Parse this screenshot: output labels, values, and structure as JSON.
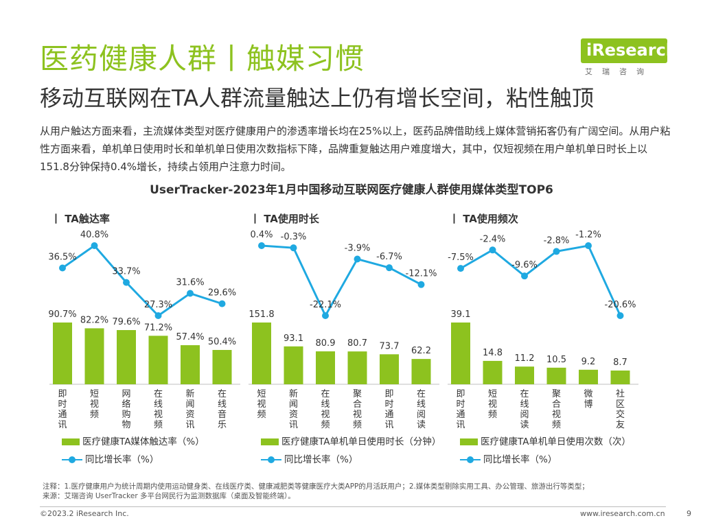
{
  "header": {
    "title": "医药健康人群丨触媒习惯",
    "subtitle": "移动互联网在TA人群流量触达上仍有增长空间，粘性触顶",
    "logo_text": "iResearch",
    "logo_sub": "艾瑞咨询"
  },
  "description": "从用户触达方面来看，主流媒体类型对医疗健康用户的渗透率增长均在25%以上，医药品牌借助线上媒体营销拓客仍有广阔空间。从用户粘性方面来看，单机单日使用时长和单机单日使用次数指标下降，品牌重复触达用户难度增大，其中，仅短视频在用户单机单日时长上以151.8分钟保持0.4%增长，持续占领用户注意力时间。",
  "chart_title": "UserTracker-2023年1月中国移动互联网医疗健康人群使用媒体类型TOP6",
  "colors": {
    "bar": "#8dc21f",
    "line": "#1fa9e1",
    "accent": "#8dc21f"
  },
  "chart_data": [
    {
      "type": "bar",
      "panel_title": "丨 TA触达率",
      "categories": [
        "即时通讯",
        "短视频",
        "网络购物",
        "在线视频",
        "新闻资讯",
        "在线音乐"
      ],
      "values": [
        90.7,
        82.2,
        79.6,
        71.2,
        57.4,
        50.4
      ],
      "value_labels": [
        "90.7%",
        "82.2%",
        "79.6%",
        "71.2%",
        "57.4%",
        "50.4%"
      ],
      "growth": [
        36.5,
        40.8,
        33.7,
        27.3,
        31.6,
        29.6
      ],
      "growth_labels": [
        "36.5%",
        "40.8%",
        "33.7%",
        "27.3%",
        "31.6%",
        "29.6%"
      ],
      "legend_bar": "医疗健康TA媒体触达率（%）",
      "legend_line": "同比增长率（%）"
    },
    {
      "type": "bar",
      "panel_title": "丨 TA使用时长",
      "categories": [
        "短视频",
        "新闻资讯",
        "在线视频",
        "聚合视频",
        "即时通讯",
        "在线阅读"
      ],
      "values": [
        151.8,
        93.1,
        80.9,
        80.7,
        73.7,
        62.2
      ],
      "value_labels": [
        "151.8",
        "93.1",
        "80.9",
        "80.7",
        "73.7",
        "62.2"
      ],
      "growth": [
        0.4,
        -0.3,
        -22.1,
        -3.9,
        -6.7,
        -12.1
      ],
      "growth_labels": [
        "0.4%",
        "-0.3%",
        "-22.1%",
        "-3.9%",
        "-6.7%",
        "-12.1%"
      ],
      "legend_bar": "医疗健康TA单机单日使用时长（分钟）",
      "legend_line": "同比增长率（%）"
    },
    {
      "type": "bar",
      "panel_title": "丨 TA使用频次",
      "categories": [
        "即时通讯",
        "短视频",
        "在线阅读",
        "聚合视频",
        "微博",
        "社区交友"
      ],
      "values": [
        39.1,
        14.8,
        11.2,
        10.5,
        9.2,
        8.7
      ],
      "value_labels": [
        "39.1",
        "14.8",
        "11.2",
        "10.5",
        "9.2",
        "8.7"
      ],
      "growth": [
        -7.5,
        -2.4,
        -9.6,
        -2.8,
        -1.2,
        -20.6
      ],
      "growth_labels": [
        "-7.5%",
        "-2.4%",
        "-9.6%",
        "-2.8%",
        "-1.2%",
        "-20.6%"
      ],
      "legend_bar": "医疗健康TA单机单日使用次数（次）",
      "legend_line": "同比增长率（%）"
    }
  ],
  "notes": {
    "line1": "注释：1.医疗健康用户为统计周期内使用运动健身类、在线医疗类、健康减肥类等健康医疗大类APP的月活跃用户；2.媒体类型剔除实用工具、办公管理、旅游出行等类型；",
    "line2": "来源：艾瑞咨询 UserTracker 多平台网民行为监测数据库（桌面及智能终端）。"
  },
  "footer": {
    "copyright": "©2023.2 iResearch Inc.",
    "website": "www.iresearch.com.cn",
    "page": "9"
  }
}
